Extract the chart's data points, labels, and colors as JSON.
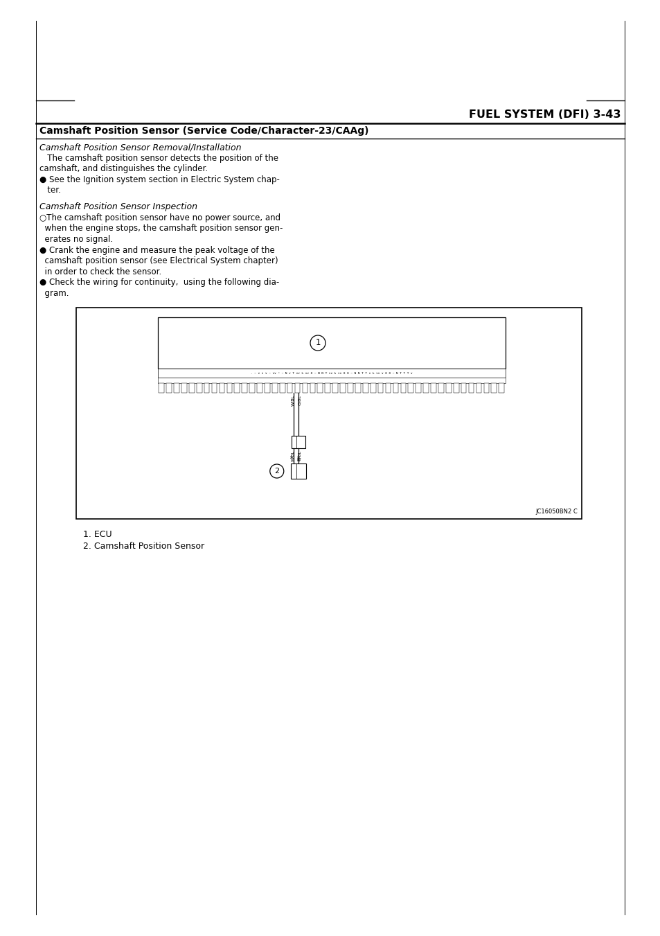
{
  "page_bg": "#ffffff",
  "header_right_text": "FUEL SYSTEM (DFI) 3-43",
  "section_title": "Camshaft Position Sensor (Service Code/Character-23/CAAg)",
  "subsection1_title": "Camshaft Position Sensor Removal/Installation",
  "subsection1_body": [
    "   The camshaft position sensor detects the position of the",
    "camshaft, and distinguishes the cylinder.",
    "● See the Ignition system section in Electric System chap-",
    "   ter."
  ],
  "subsection2_title": "Camshaft Position Sensor Inspection",
  "subsection2_body": [
    "○The camshaft position sensor have no power source, and",
    "  when the engine stops, the camshaft position sensor gen-",
    "  erates no signal.",
    "● Crank the engine and measure the peak voltage of the",
    "  camshaft position sensor (see Electrical System chapter)",
    "  in order to check the sensor.",
    "● Check the wiring for continuity,  using the following dia-",
    "  gram."
  ],
  "caption1": "1. ECU",
  "caption2": "2. Camshaft Position Sensor",
  "diagram_ref": "JC16050BN2 C"
}
